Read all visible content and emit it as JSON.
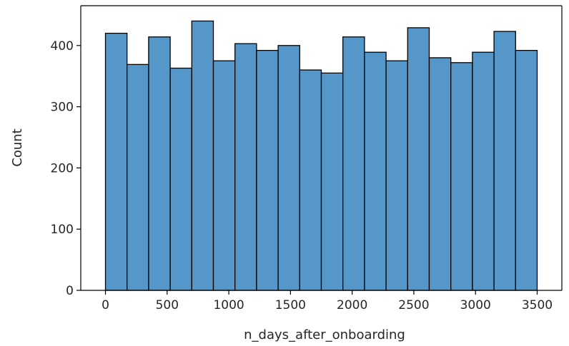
{
  "chart_data": {
    "type": "bar",
    "subtype": "histogram",
    "xlabel": "n_days_after_onboarding",
    "ylabel": "Count",
    "xlim": [
      -200,
      3700
    ],
    "ylim": [
      0,
      465
    ],
    "grid": false,
    "legend": "none",
    "bar_color": "#5597c9",
    "edge_color": "#000000",
    "bin_edges": [
      0,
      175,
      350,
      525,
      700,
      875,
      1050,
      1225,
      1400,
      1575,
      1750,
      1925,
      2100,
      2275,
      2450,
      2625,
      2800,
      2975,
      3150,
      3325,
      3500
    ],
    "values": [
      420,
      369,
      414,
      363,
      440,
      375,
      403,
      392,
      400,
      360,
      355,
      414,
      389,
      375,
      429,
      380,
      372,
      389,
      423,
      392
    ],
    "x_ticks": [
      0,
      500,
      1000,
      1500,
      2000,
      2500,
      3000,
      3500
    ],
    "x_tick_labels": [
      "0",
      "500",
      "1000",
      "1500",
      "2000",
      "2500",
      "3000",
      "3500"
    ],
    "y_ticks": [
      0,
      100,
      200,
      300,
      400
    ],
    "y_tick_labels": [
      "0",
      "100",
      "200",
      "300",
      "400"
    ]
  }
}
